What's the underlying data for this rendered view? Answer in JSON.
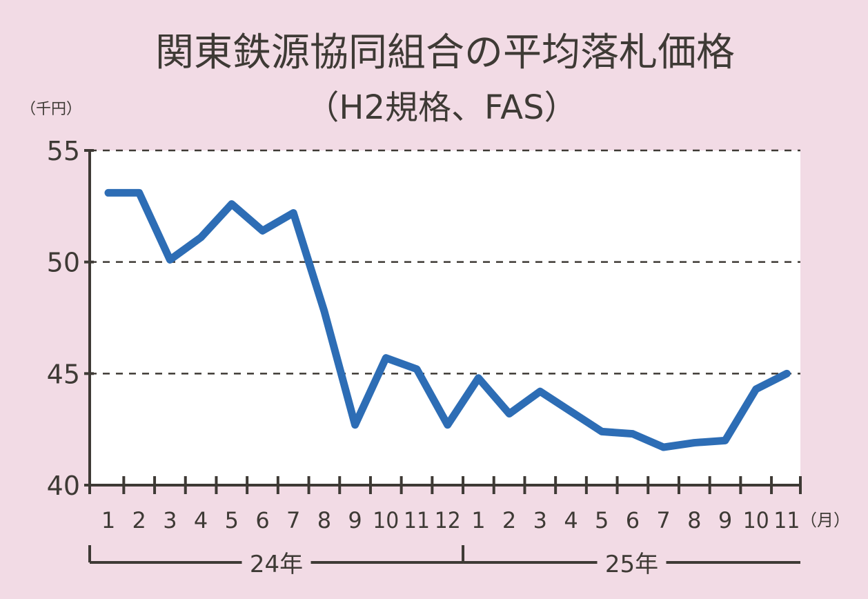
{
  "chart_data": {
    "type": "line",
    "title": "関東鉄源協同組合の平均落札価格",
    "subtitle": "（H2規格、FAS）",
    "ylabel": "（千円）",
    "xlabel": "（月）",
    "ylim": [
      40,
      55
    ],
    "yticks": [
      40,
      45,
      50,
      55
    ],
    "grid": "horizontal dashed",
    "categories": [
      "1",
      "2",
      "3",
      "4",
      "5",
      "6",
      "7",
      "8",
      "9",
      "10",
      "11",
      "12",
      "1",
      "2",
      "3",
      "4",
      "5",
      "6",
      "7",
      "8",
      "9",
      "10",
      "11"
    ],
    "year_groups": [
      {
        "label": "24年",
        "months": 12
      },
      {
        "label": "25年",
        "months": 11
      }
    ],
    "series": [
      {
        "color": "#2d6db5",
        "values": [
          53.1,
          53.1,
          50.1,
          51.1,
          52.6,
          51.4,
          52.2,
          47.8,
          42.7,
          45.7,
          45.2,
          42.7,
          44.8,
          43.2,
          44.2,
          43.3,
          42.4,
          42.3,
          41.7,
          41.9,
          42.0,
          44.3,
          45.0
        ]
      }
    ],
    "colors": {
      "background": "#f2dbe5",
      "plot": "#ffffff",
      "axis": "#3e3a35"
    }
  }
}
